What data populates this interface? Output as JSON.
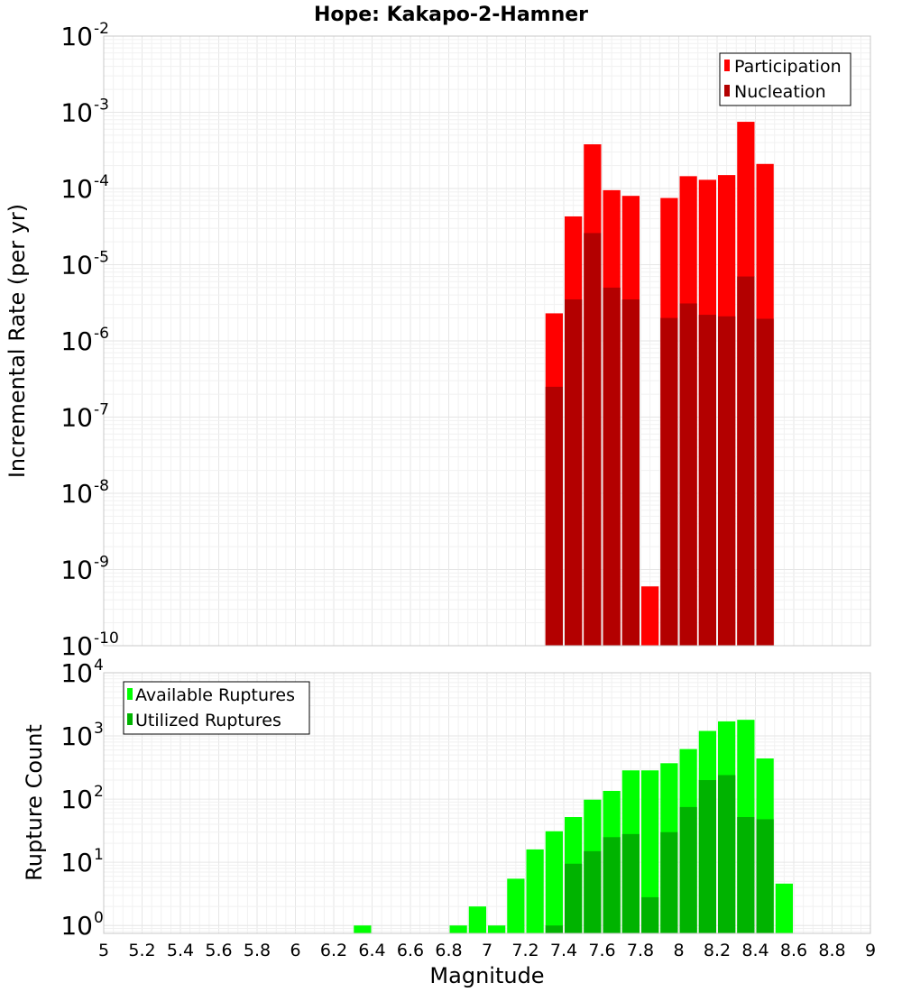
{
  "title": "Hope: Kakapo-2-Hamner",
  "colors": {
    "participation": "#ff0000",
    "nucleation": "#b30000",
    "available": "#00ff00",
    "utilized": "#00b300"
  },
  "chart_data": [
    {
      "type": "bar",
      "ylabel": "Incremental Rate (per yr)",
      "yscale": "log",
      "ylim": [
        1e-10,
        0.01
      ],
      "xlim": [
        5,
        9
      ],
      "bin_width": 0.1,
      "grid": true,
      "legend_position": "top-right",
      "y_ticks": [
        {
          "base": "10",
          "exp": "-10",
          "value": 1e-10
        },
        {
          "base": "10",
          "exp": "-9",
          "value": 1e-09
        },
        {
          "base": "10",
          "exp": "-8",
          "value": 1e-08
        },
        {
          "base": "10",
          "exp": "-7",
          "value": 1e-07
        },
        {
          "base": "10",
          "exp": "-6",
          "value": 1e-06
        },
        {
          "base": "10",
          "exp": "-5",
          "value": 1e-05
        },
        {
          "base": "10",
          "exp": "-4",
          "value": 0.0001
        },
        {
          "base": "10",
          "exp": "-3",
          "value": 0.001
        },
        {
          "base": "10",
          "exp": "-2",
          "value": 0.01
        }
      ],
      "x": [
        7.35,
        7.45,
        7.55,
        7.65,
        7.75,
        7.85,
        7.95,
        8.05,
        8.15,
        8.25,
        8.35,
        8.45
      ],
      "series": [
        {
          "name": "Participation",
          "values": [
            2.3e-06,
            4.3e-05,
            0.00038,
            9.5e-05,
            8e-05,
            6e-10,
            7.5e-05,
            0.000145,
            0.00013,
            0.00015,
            0.00075,
            0.00021
          ]
        },
        {
          "name": "Nucleation",
          "values": [
            2.5e-07,
            3.5e-06,
            2.6e-05,
            5e-06,
            3.5e-06,
            null,
            2e-06,
            3.1e-06,
            2.2e-06,
            2.1e-06,
            7e-06,
            1.95e-06
          ]
        }
      ]
    },
    {
      "type": "bar",
      "ylabel": "Rupture Count",
      "xlabel": "Magnitude",
      "yscale": "log",
      "ylim": [
        0.75,
        10000
      ],
      "xlim": [
        5,
        9
      ],
      "bin_width": 0.1,
      "grid": true,
      "legend_position": "top-left",
      "y_ticks": [
        {
          "base": "10",
          "exp": "0",
          "value": 1
        },
        {
          "base": "10",
          "exp": "1",
          "value": 10
        },
        {
          "base": "10",
          "exp": "2",
          "value": 100
        },
        {
          "base": "10",
          "exp": "3",
          "value": 1000
        },
        {
          "base": "10",
          "exp": "4",
          "value": 10000
        }
      ],
      "x_ticks": [
        "5",
        "5.2",
        "5.4",
        "5.6",
        "5.8",
        "6",
        "6.2",
        "6.4",
        "6.6",
        "6.8",
        "7",
        "7.2",
        "7.4",
        "7.6",
        "7.8",
        "8",
        "8.2",
        "8.4",
        "8.6",
        "8.8",
        "9"
      ],
      "x": [
        6.35,
        6.85,
        6.95,
        7.05,
        7.15,
        7.25,
        7.35,
        7.45,
        7.55,
        7.65,
        7.75,
        7.85,
        7.95,
        8.05,
        8.15,
        8.25,
        8.35,
        8.45,
        8.55
      ],
      "series": [
        {
          "name": "Available Ruptures",
          "values": [
            1,
            1,
            2,
            1,
            5.5,
            16,
            31,
            52,
            98,
            135,
            285,
            285,
            370,
            620,
            1200,
            1700,
            1800,
            440,
            4.6
          ]
        },
        {
          "name": "Utilized Ruptures",
          "values": [
            null,
            null,
            null,
            null,
            null,
            null,
            1,
            9.5,
            15,
            25,
            28,
            2.8,
            30,
            75,
            200,
            240,
            52,
            48,
            null
          ]
        }
      ]
    }
  ]
}
